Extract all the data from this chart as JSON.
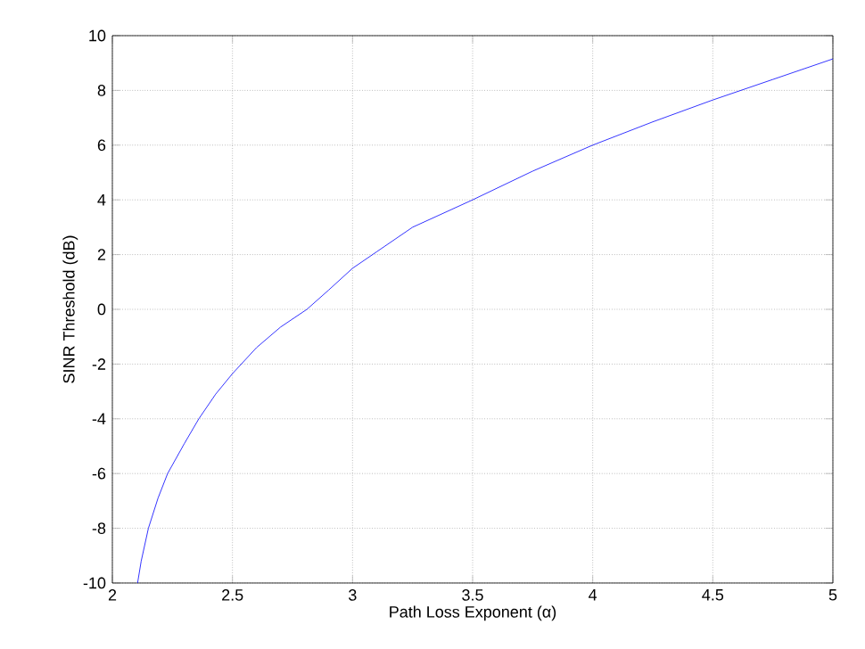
{
  "chart_data": {
    "type": "line",
    "xlabel": "Path Loss Exponent (α)",
    "ylabel": "SINR Threshold (dB)",
    "x": [
      2.105,
      2.12,
      2.15,
      2.19,
      2.23,
      2.3,
      2.36,
      2.43,
      2.5,
      2.6,
      2.7,
      2.81,
      2.9,
      3,
      3.1,
      3.25,
      3.5,
      3.75,
      4,
      4.25,
      4.5,
      4.75,
      5
    ],
    "series": [
      {
        "color": "#0000ff",
        "values": [
          -10,
          -9.2,
          -8,
          -6.9,
          -6,
          -4.9,
          -4,
          -3.1,
          -2.35,
          -1.4,
          -0.65,
          0,
          0.7,
          1.5,
          2.1,
          3,
          4,
          5.05,
          6,
          6.85,
          7.65,
          8.4,
          9.15
        ]
      }
    ],
    "xlim": [
      2,
      5
    ],
    "ylim": [
      -10,
      10
    ],
    "xticks": [
      2,
      2.5,
      3,
      3.5,
      4,
      4.5,
      5
    ],
    "yticks": [
      -10,
      -8,
      -6,
      -4,
      -2,
      0,
      2,
      4,
      6,
      8,
      10
    ],
    "grid": true
  }
}
